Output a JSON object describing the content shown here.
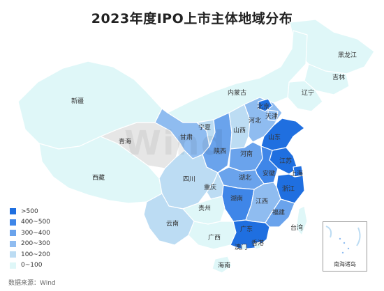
{
  "title": "2023年度IPO上市主体地域分布",
  "source": "数据来源：Wind",
  "watermark": "Wind",
  "legend": [
    {
      "label": ">500",
      "color": "#1f6fe0"
    },
    {
      "label": "400~500",
      "color": "#3f86e8"
    },
    {
      "label": "300~400",
      "color": "#6aa3ec"
    },
    {
      "label": "200~300",
      "color": "#8fbcf0"
    },
    {
      "label": "100~200",
      "color": "#bcdcf3"
    },
    {
      "label": "0~100",
      "color": "#dff7f8"
    }
  ],
  "no_data_color": "#e6e6e6",
  "provinces": [
    {
      "name": "黑龙江",
      "tier": "0~100"
    },
    {
      "name": "吉林",
      "tier": "0~100"
    },
    {
      "name": "辽宁",
      "tier": "0~100"
    },
    {
      "name": "内蒙古",
      "tier": "0~100"
    },
    {
      "name": "新疆",
      "tier": "0~100"
    },
    {
      "name": "西藏",
      "tier": "0~100"
    },
    {
      "name": "青海",
      "tier": "no-data"
    },
    {
      "name": "甘肃",
      "tier": "200~300"
    },
    {
      "name": "宁夏",
      "tier": "100~200"
    },
    {
      "name": "山西",
      "tier": "100~200"
    },
    {
      "name": "河北",
      "tier": "200~300"
    },
    {
      "name": "北京",
      "tier": ">500"
    },
    {
      "name": "天津",
      "tier": "200~300"
    },
    {
      "name": "陕西",
      "tier": "300~400"
    },
    {
      "name": "河南",
      "tier": "300~400"
    },
    {
      "name": "山东",
      "tier": ">500"
    },
    {
      "name": "江苏",
      "tier": ">500"
    },
    {
      "name": "安徽",
      "tier": "400~500"
    },
    {
      "name": "上海",
      "tier": ">500"
    },
    {
      "name": "浙江",
      "tier": ">500"
    },
    {
      "name": "湖北",
      "tier": "300~400"
    },
    {
      "name": "四川",
      "tier": "100~200"
    },
    {
      "name": "重庆",
      "tier": "100~200"
    },
    {
      "name": "湖南",
      "tier": "400~500"
    },
    {
      "name": "江西",
      "tier": "200~300"
    },
    {
      "name": "福建",
      "tier": "300~400"
    },
    {
      "name": "贵州",
      "tier": "0~100"
    },
    {
      "name": "云南",
      "tier": "100~200"
    },
    {
      "name": "广西",
      "tier": "0~100"
    },
    {
      "name": "广东",
      "tier": ">500"
    },
    {
      "name": "海南",
      "tier": "0~100"
    },
    {
      "name": "台湾",
      "tier": "0~100"
    },
    {
      "name": "香港",
      "tier": "0~100"
    },
    {
      "name": "澳门",
      "tier": "0~100"
    }
  ],
  "inset_label": "南海诸岛"
}
